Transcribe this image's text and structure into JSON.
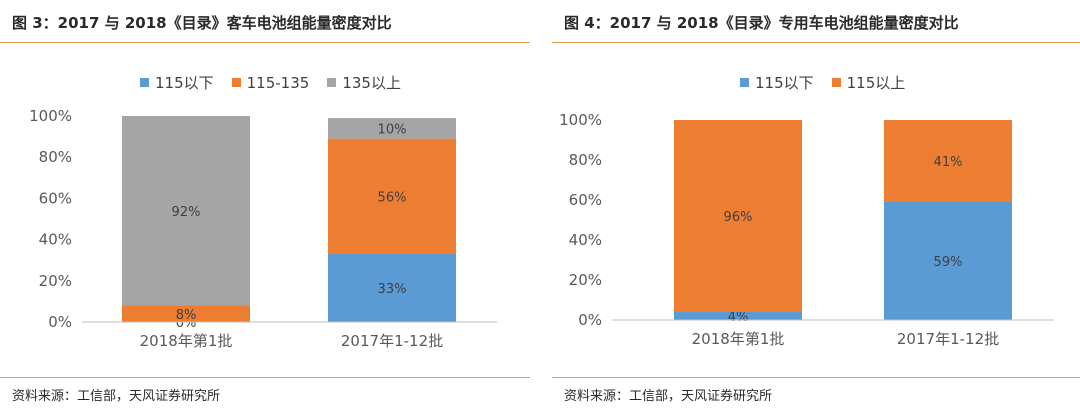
{
  "figures": [
    {
      "title": "图 3：2017 与 2018《目录》客车电池组能量密度对比",
      "source": "资料来源：工信部，天风证券研究所",
      "chart_data": {
        "type": "bar",
        "stacked": true,
        "categories": [
          "2018年第1批",
          "2017年1-12批"
        ],
        "series": [
          {
            "name": "115以下",
            "color": "#5b9bd5",
            "values": [
              0,
              33
            ]
          },
          {
            "name": "115-135",
            "color": "#ed7d31",
            "values": [
              8,
              56
            ]
          },
          {
            "name": "135以上",
            "color": "#a5a5a5",
            "values": [
              92,
              10
            ]
          }
        ],
        "data_labels": [
          [
            "0%",
            "33%"
          ],
          [
            "8%",
            "56%"
          ],
          [
            "92%",
            "10%"
          ]
        ],
        "ylim": [
          0,
          100
        ],
        "yticks": [
          "0%",
          "20%",
          "40%",
          "60%",
          "80%",
          "100%"
        ],
        "legend_position": "top",
        "grid": false
      }
    },
    {
      "title": "图 4：2017 与 2018《目录》专用车电池组能量密度对比",
      "source": "资料来源：工信部，天风证券研究所",
      "chart_data": {
        "type": "bar",
        "stacked": true,
        "categories": [
          "2018年第1批",
          "2017年1-12批"
        ],
        "series": [
          {
            "name": "115以下",
            "color": "#5b9bd5",
            "values": [
              4,
              59
            ]
          },
          {
            "name": "115以上",
            "color": "#ed7d31",
            "values": [
              96,
              41
            ]
          }
        ],
        "data_labels": [
          [
            "4%",
            "59%"
          ],
          [
            "96%",
            "41%"
          ]
        ],
        "ylim": [
          0,
          100
        ],
        "yticks": [
          "0%",
          "20%",
          "40%",
          "60%",
          "80%",
          "100%"
        ],
        "legend_position": "top",
        "grid": false
      }
    }
  ]
}
